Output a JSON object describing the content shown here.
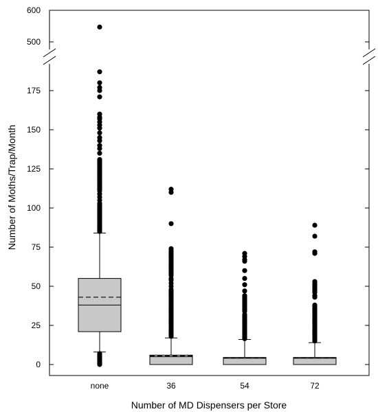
{
  "chart_data": {
    "type": "box",
    "xlabel": "Number of MD Dispensers per Store",
    "ylabel": "Number of Moths/Trap/Month",
    "y_axis_break": {
      "lower_range": [
        0,
        200
      ],
      "upper_range": [
        475,
        600
      ]
    },
    "y_ticks_lower": [
      0,
      25,
      50,
      75,
      100,
      125,
      150,
      175
    ],
    "y_ticks_upper": [
      500,
      600
    ],
    "categories": [
      "none",
      "36",
      "54",
      "72"
    ],
    "boxes": [
      {
        "category": "none",
        "whisker_low": 8,
        "q1": 21,
        "median": 38,
        "q3": 55,
        "whisker_high": 84,
        "mean": 43,
        "outliers": [
          0,
          0.5,
          1,
          1.5,
          2,
          3,
          4,
          5,
          6,
          7,
          85,
          86,
          87,
          88,
          89,
          90,
          91,
          92,
          93,
          94,
          95,
          96,
          97,
          98,
          99,
          100,
          101,
          102,
          103,
          105,
          107,
          109,
          111,
          112,
          113,
          114,
          115,
          116,
          117,
          118,
          119,
          120,
          121,
          122,
          123,
          124,
          125,
          126,
          127,
          128,
          129,
          130,
          131,
          135,
          138,
          140,
          143,
          145,
          148,
          151,
          153,
          155,
          157,
          158,
          160,
          171,
          175,
          177,
          180,
          187,
          547
        ]
      },
      {
        "category": "36",
        "whisker_low": 0,
        "q1": 0,
        "median": 5,
        "q3": 6,
        "whisker_high": 17,
        "mean": 5.5,
        "outliers": [
          18,
          19,
          20,
          21,
          22,
          23,
          24,
          25,
          26,
          27,
          28,
          29,
          30,
          31,
          32,
          33,
          34,
          35,
          36,
          37,
          38,
          39,
          40,
          41,
          42,
          43,
          44,
          45,
          46,
          47,
          48,
          50,
          52,
          54,
          55,
          57,
          58,
          59,
          60,
          61,
          62,
          63,
          64,
          65,
          66,
          67,
          68,
          69,
          70,
          71,
          72,
          73,
          74,
          90,
          110,
          112
        ]
      },
      {
        "category": "54",
        "whisker_low": 0,
        "q1": 0,
        "median": 4,
        "q3": 4.5,
        "whisker_high": 16,
        "mean": 4.2,
        "outliers": [
          16.5,
          17,
          18,
          19,
          20,
          21,
          22,
          23,
          24,
          25,
          26,
          27,
          28,
          29,
          30,
          31,
          32,
          34,
          35,
          36,
          37,
          38,
          39,
          40,
          41,
          42,
          43,
          44,
          47,
          51,
          55,
          60,
          66,
          67,
          69,
          71
        ]
      },
      {
        "category": "72",
        "whisker_low": 0,
        "q1": 0,
        "median": 4,
        "q3": 4.5,
        "whisker_high": 14,
        "mean": 4.3,
        "outliers": [
          15,
          16,
          17,
          18,
          19,
          20,
          21,
          22,
          23,
          24,
          25,
          26,
          27,
          28,
          29,
          30,
          31,
          32,
          33,
          34,
          35,
          36,
          37,
          38,
          43,
          44,
          46,
          47,
          48,
          49,
          50,
          51,
          52,
          53,
          71,
          72,
          82,
          89
        ]
      }
    ]
  }
}
